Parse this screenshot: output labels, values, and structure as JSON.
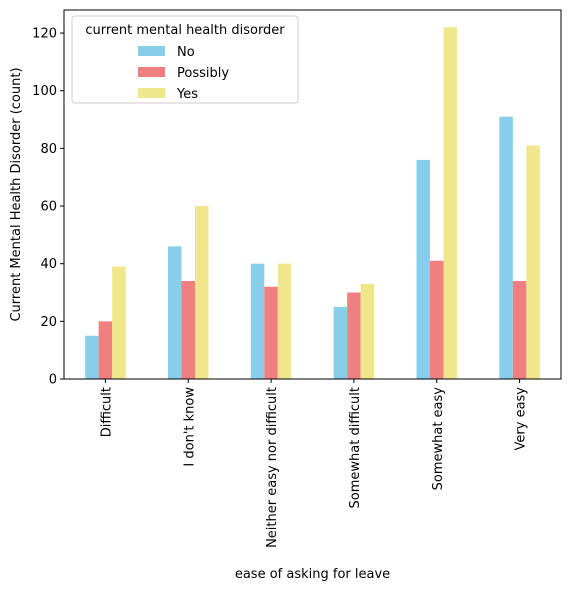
{
  "chart_data": {
    "type": "bar",
    "categories": [
      "Difficult",
      "I don't know",
      "Neither easy nor difficult",
      "Somewhat difficult",
      "Somewhat easy",
      "Very easy"
    ],
    "series": [
      {
        "name": "No",
        "color": "#87ceeb",
        "values": [
          15,
          46,
          40,
          25,
          76,
          91
        ]
      },
      {
        "name": "Possibly",
        "color": "#f08080",
        "values": [
          20,
          34,
          32,
          30,
          41,
          34
        ]
      },
      {
        "name": "Yes",
        "color": "#f0e68c",
        "values": [
          39,
          60,
          40,
          33,
          122,
          81
        ]
      }
    ],
    "xlabel": "ease of asking for leave",
    "ylabel": "Current Mental Health Disorder (count)",
    "ylim": [
      0,
      128
    ],
    "yticks": [
      0,
      20,
      40,
      60,
      80,
      100,
      120
    ],
    "legend": {
      "title": "current mental health disorder",
      "placement": "top-left"
    },
    "grid": false
  }
}
